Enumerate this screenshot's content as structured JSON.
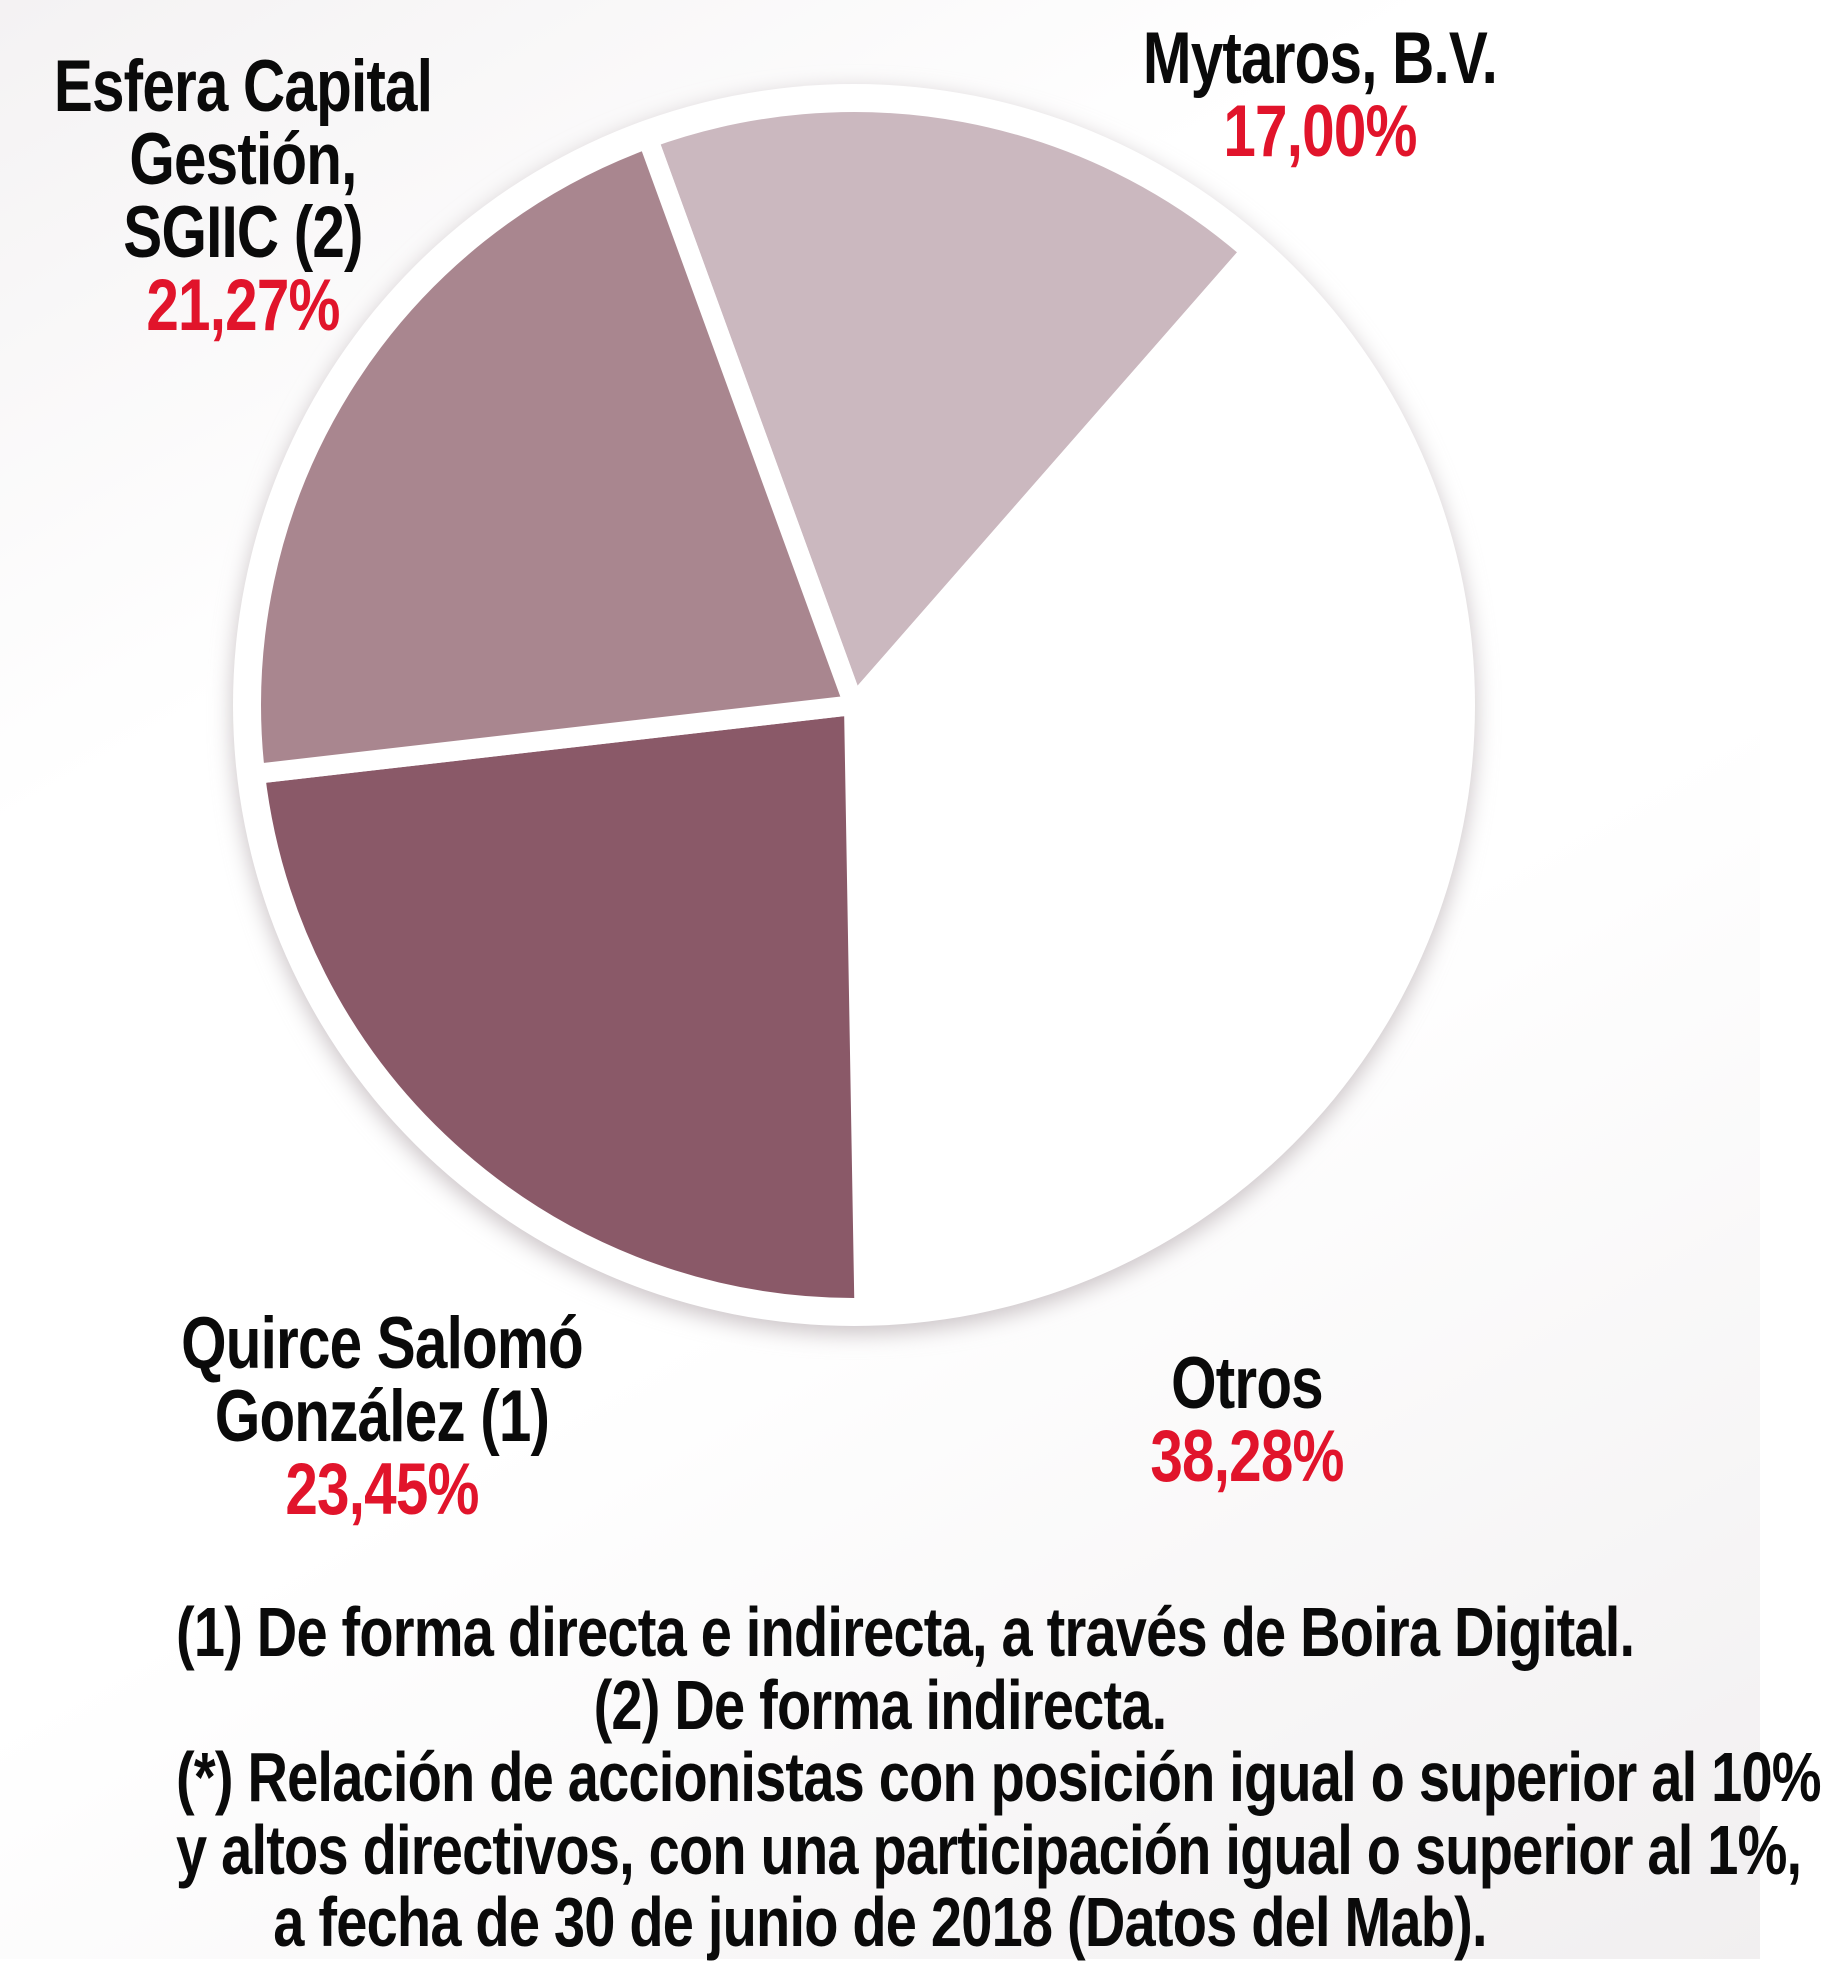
{
  "chart_data": {
    "type": "pie",
    "units": "percent",
    "slices": [
      {
        "id": "mytaros",
        "name": "Mytaros, B.V.",
        "value": 17.0,
        "value_label": "17,00%",
        "color": "#cbb8bf"
      },
      {
        "id": "otros",
        "name": "Otros",
        "value": 38.28,
        "value_label": "38,28%",
        "color": "#ffffff"
      },
      {
        "id": "quirce",
        "name": "Quirce Salomó González (1)",
        "value": 23.45,
        "value_label": "23,45%",
        "color": "#8a5968"
      },
      {
        "id": "esfera",
        "name": "Esfera Capital Gestión, SGIIC (2)",
        "value": 21.27,
        "value_label": "21,27%",
        "color": "#a9868f"
      }
    ],
    "start_angle_deg": -20,
    "clockwise": true,
    "separator_color": "#ffffff",
    "legend_position": "labels-around"
  },
  "labels": {
    "esfera": {
      "lines": [
        "Esfera Capital",
        "Gestión,",
        "SGIIC (2)"
      ]
    },
    "mytaros": {
      "lines": [
        "Mytaros, B.V."
      ]
    },
    "quirce": {
      "lines": [
        "Quirce Salomó",
        "González (1)"
      ]
    },
    "otros": {
      "lines": [
        "Otros"
      ]
    }
  },
  "footnotes": {
    "lines": [
      "(1) De forma directa e indirecta, a través de Boira Digital.",
      "(2) De forma indirecta.",
      "(*) Relación de accionistas con posición igual o superior al 10%",
      "y altos directivos, con una participación igual o superior al 1%,",
      "a fecha de 30 de junio de 2018 (Datos del Mab)."
    ]
  },
  "colors": {
    "pct_text": "#e1142b",
    "label_text": "#0a0a0a",
    "background": "#ffffff"
  }
}
